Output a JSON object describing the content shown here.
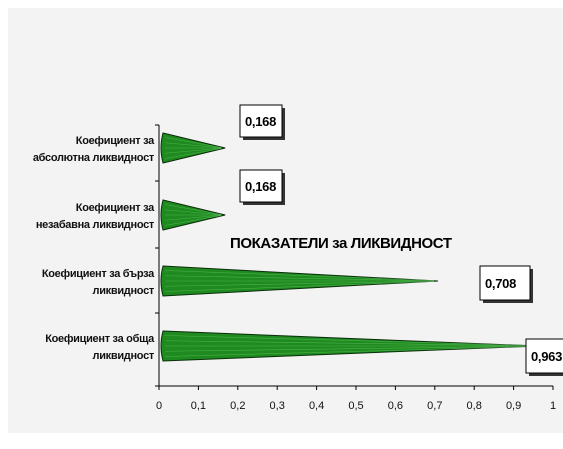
{
  "chart_data": {
    "type": "bar",
    "orientation": "horizontal",
    "title": "ПОКАЗАТЕЛИ за ЛИКВИДНОСТ",
    "categories": [
      [
        "Коефициент за",
        "абсолютна  ликвидност"
      ],
      [
        "Коефициент за",
        "незабавна ликвидност"
      ],
      [
        "Коефициент за бърза",
        "ликвидност"
      ],
      [
        "Коефициент за обща",
        "ликвидност"
      ]
    ],
    "values": [
      0.168,
      0.168,
      0.708,
      0.963
    ],
    "data_labels": [
      "0,168",
      "0,168",
      "0,708",
      "0,963"
    ],
    "xlim": [
      0,
      1
    ],
    "xticks": [
      "0",
      "0,1",
      "0,2",
      "0,3",
      "0,4",
      "0,5",
      "0,6",
      "0,7",
      "0,8",
      "0,9",
      "1"
    ],
    "grid": false,
    "legend": "none",
    "bar_shape": "cone",
    "colors": {
      "bar_fill": "#1f8a1f",
      "bar_stroke": "#0b2e0b",
      "plot_background": "#f3f3f3",
      "axis": "#000000"
    }
  }
}
